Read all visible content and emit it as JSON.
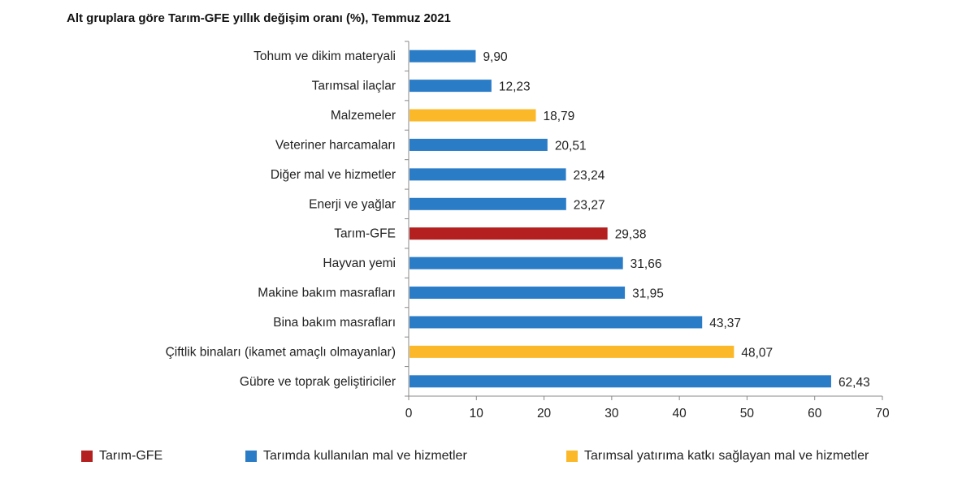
{
  "chart_data": {
    "type": "bar",
    "orientation": "horizontal",
    "title": "Alt gruplara göre Tarım-GFE yıllık değişim oranı (%), Temmuz 2021",
    "categories": [
      "Tohum ve dikim materyali",
      "Tarımsal ilaçlar",
      "Malzemeler",
      "Veteriner harcamaları",
      "Diğer mal ve hizmetler",
      "Enerji ve yağlar",
      "Tarım-GFE",
      "Hayvan yemi",
      "Makine bakım masrafları",
      "Bina bakım masrafları",
      "Çiftlik binaları (ikamet amaçlı olmayanlar)",
      "Gübre ve toprak geliştiriciler"
    ],
    "values": [
      9.9,
      12.23,
      18.79,
      20.51,
      23.24,
      23.27,
      29.38,
      31.66,
      31.95,
      43.37,
      48.07,
      62.43
    ],
    "value_labels": [
      "9,90",
      "12,23",
      "18,79",
      "20,51",
      "23,24",
      "23,27",
      "29,38",
      "31,66",
      "31,95",
      "43,37",
      "48,07",
      "62,43"
    ],
    "groups": [
      "blue",
      "blue",
      "yellow",
      "blue",
      "blue",
      "blue",
      "red",
      "blue",
      "blue",
      "blue",
      "yellow",
      "blue"
    ],
    "xlim": [
      0,
      70
    ],
    "xticks": [
      0,
      10,
      20,
      30,
      40,
      50,
      60,
      70
    ],
    "grid": false,
    "legend_position": "bottom",
    "legend": [
      {
        "key": "red",
        "label": "Tarım-GFE",
        "color": "#b3201f"
      },
      {
        "key": "blue",
        "label": "Tarımda kullanılan mal ve hizmetler",
        "color": "#2a7cc7"
      },
      {
        "key": "yellow",
        "label": "Tarımsal yatırıma katkı sağlayan mal ve hizmetler",
        "color": "#fbb829"
      }
    ]
  }
}
